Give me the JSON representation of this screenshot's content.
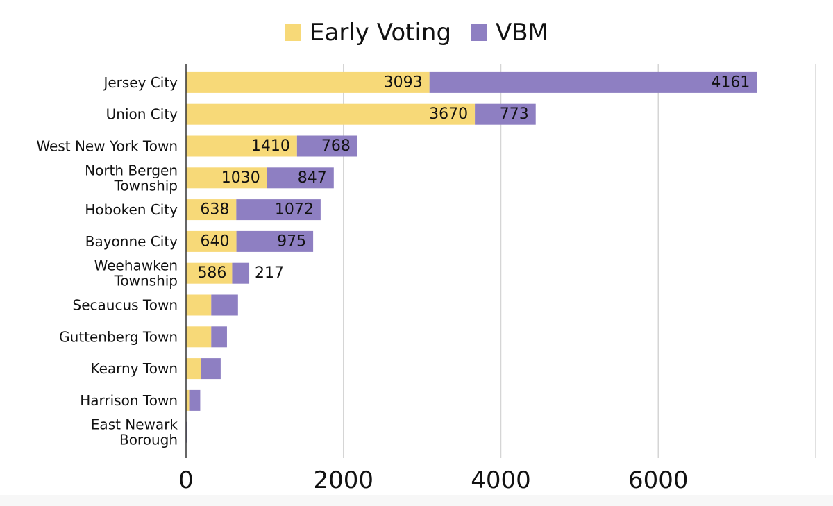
{
  "legend": {
    "items": [
      {
        "label": "Early Voting",
        "color": "#f7d978"
      },
      {
        "label": "VBM",
        "color": "#8e7fc2"
      }
    ]
  },
  "chart_data": {
    "type": "bar",
    "orientation": "horizontal",
    "stacked": true,
    "categories": [
      "Jersey City",
      "Union City",
      "West New York Town",
      "North Bergen Township",
      "Hoboken City",
      "Bayonne City",
      "Weehawken Township",
      "Secaucus Town",
      "Guttenberg Town",
      "Kearny Town",
      "Harrison Town",
      "East Newark Borough"
    ],
    "category_lines": [
      [
        "Jersey City"
      ],
      [
        "Union City"
      ],
      [
        "West New York Town"
      ],
      [
        "North Bergen",
        "Township"
      ],
      [
        "Hoboken City"
      ],
      [
        "Bayonne City"
      ],
      [
        "Weehawken",
        "Township"
      ],
      [
        "Secaucus Town"
      ],
      [
        "Guttenberg Town"
      ],
      [
        "Kearny Town"
      ],
      [
        "Harrison Town"
      ],
      [
        "East Newark",
        "Borough"
      ]
    ],
    "series": [
      {
        "name": "Early Voting",
        "color": "#f7d978",
        "values": [
          3093,
          3670,
          1410,
          1030,
          638,
          640,
          586,
          320,
          320,
          190,
          40,
          3
        ],
        "labeled": [
          true,
          true,
          true,
          true,
          true,
          true,
          true,
          false,
          false,
          false,
          false,
          false
        ]
      },
      {
        "name": "VBM",
        "color": "#8e7fc2",
        "values": [
          4161,
          773,
          768,
          847,
          1072,
          975,
          217,
          340,
          200,
          250,
          140,
          5
        ],
        "labeled": [
          true,
          true,
          true,
          true,
          true,
          true,
          true,
          false,
          false,
          false,
          false,
          false
        ]
      }
    ],
    "xlim": [
      0,
      8000
    ],
    "xticks": [
      0,
      2000,
      4000,
      6000
    ],
    "grid": true,
    "legend_position": "top-center",
    "xlabel": "",
    "ylabel": ""
  }
}
